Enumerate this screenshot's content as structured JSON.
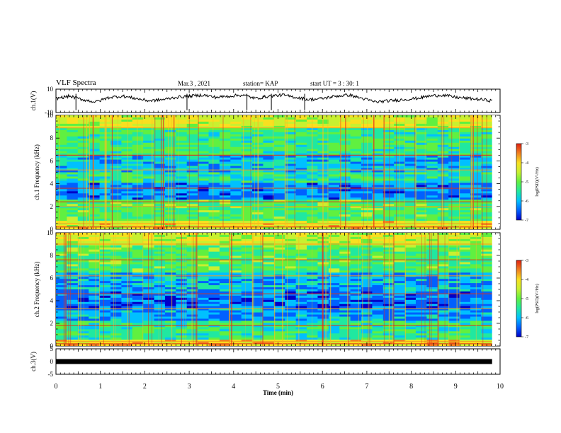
{
  "header": {
    "title": "VLF Spectra",
    "date": "Mar.3 , 2021",
    "station": "station= KAP",
    "start": "start UT = 3 : 30: 1"
  },
  "chart_data": [
    {
      "type": "line",
      "title": "",
      "ylabel": "ch.1(V)",
      "ylim": [
        -10,
        10
      ],
      "yticks": [
        "10",
        "-10"
      ],
      "x": [
        0,
        0.3,
        0.6,
        0.9,
        1.2,
        1.5,
        1.8,
        2.1,
        2.4,
        2.7,
        3.0,
        3.3,
        3.6,
        3.9,
        4.2,
        4.5,
        4.8,
        5.1,
        5.4,
        5.7,
        6.0,
        6.3,
        6.6,
        6.9,
        7.2,
        7.5,
        7.8,
        8.1,
        8.4,
        8.7,
        9.0,
        9.3,
        9.6,
        9.82
      ],
      "values": [
        2,
        4,
        1,
        -1,
        3,
        4,
        2,
        0,
        1,
        3,
        4,
        5,
        3,
        4,
        5,
        2,
        4,
        5,
        3,
        1,
        2,
        4,
        5,
        2,
        -1,
        0,
        1,
        2,
        4,
        5,
        3,
        2,
        1,
        0
      ]
    },
    {
      "type": "heatmap",
      "title": "",
      "ylabel": "ch.1 Frequency (kHz)",
      "ylim": [
        0,
        10
      ],
      "yticks": [
        "0",
        "2",
        "4",
        "6",
        "8",
        "10"
      ],
      "colorbar": {
        "label": "log(PSD)(V²/Hz)",
        "ticks": [
          "-3",
          "-4",
          "-5",
          "-6",
          "-7"
        ],
        "range": [
          -7,
          -3
        ]
      }
    },
    {
      "type": "heatmap",
      "title": "",
      "ylabel": "ch.2 Frequency (kHz)",
      "ylim": [
        0,
        10
      ],
      "yticks": [
        "0",
        "2",
        "4",
        "6",
        "8",
        "10"
      ],
      "colorbar": {
        "label": "log(PSD)(V²/Hz)",
        "ticks": [
          "-3",
          "-4",
          "-5",
          "-6",
          "-7"
        ],
        "range": [
          -7,
          -3
        ]
      }
    },
    {
      "type": "line",
      "title": "",
      "ylabel": "ch.3(V)",
      "ylim": [
        -5,
        5
      ],
      "yticks": [
        "5",
        "0",
        "-5"
      ],
      "x": [
        0,
        9.82
      ],
      "values": [
        0,
        0
      ]
    }
  ],
  "xaxis": {
    "label": "Time (min)",
    "xlim": [
      0,
      10
    ],
    "ticks": [
      "0",
      "1",
      "2",
      "3",
      "4",
      "5",
      "6",
      "7",
      "8",
      "9",
      "10"
    ]
  },
  "colors": {
    "trace": "#000000",
    "colormap": [
      "#0000c8",
      "#0060ff",
      "#00c0ff",
      "#20e8a0",
      "#60f040",
      "#c8f030",
      "#f8e020",
      "#f08020",
      "#e02010"
    ]
  }
}
